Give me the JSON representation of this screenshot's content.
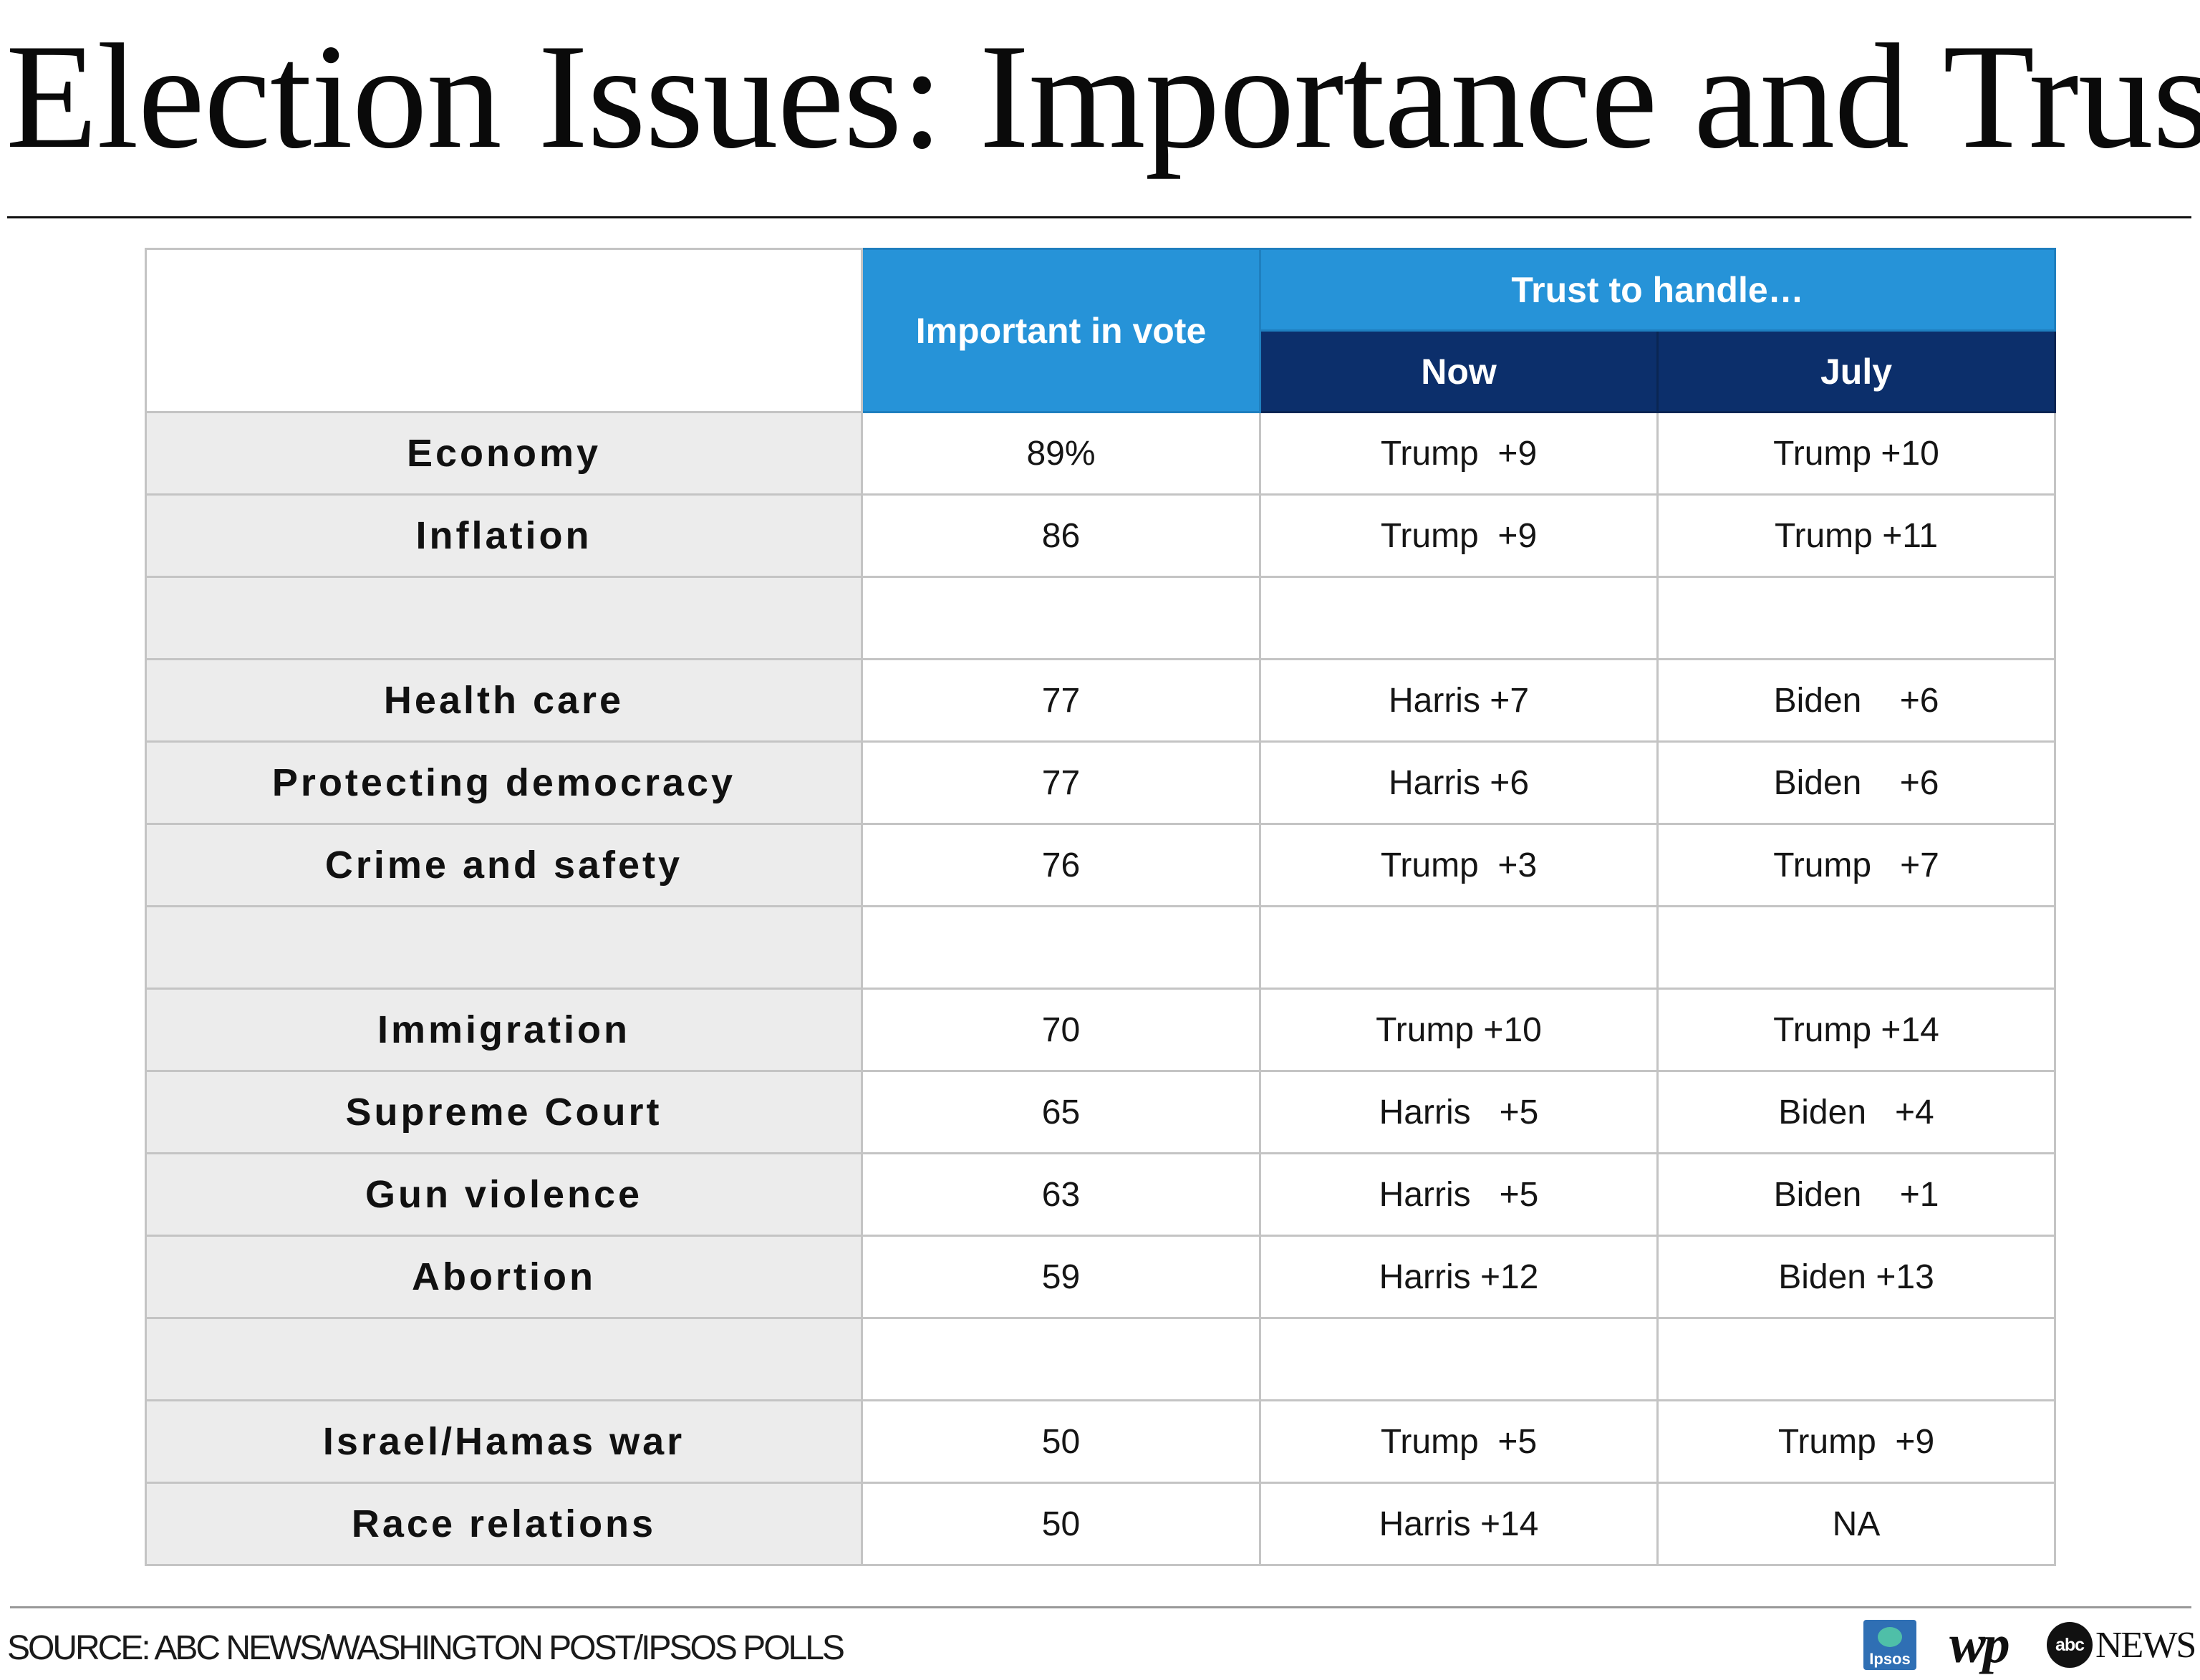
{
  "title": "Election Issues: Importance and Trust",
  "table": {
    "col_important": "Important in vote",
    "col_trust_group": "Trust to handle…",
    "col_now": "Now",
    "col_july": "July",
    "rows": [
      {
        "issue": "Economy",
        "important": "89%",
        "now": "Trump  +9",
        "july": "Trump +10"
      },
      {
        "issue": "Inflation",
        "important": "86",
        "now": "Trump  +9",
        "july": "Trump +11"
      },
      {
        "spacer": true
      },
      {
        "issue": "Health care",
        "important": "77",
        "now": "Harris +7",
        "july": "Biden    +6"
      },
      {
        "issue": "Protecting democracy",
        "important": "77",
        "now": "Harris +6",
        "july": "Biden    +6"
      },
      {
        "issue": "Crime and safety",
        "important": "76",
        "now": "Trump  +3",
        "july": "Trump   +7"
      },
      {
        "spacer": true
      },
      {
        "issue": "Immigration",
        "important": "70",
        "now": "Trump +10",
        "july": "Trump +14"
      },
      {
        "issue": "Supreme Court",
        "important": "65",
        "now": "Harris   +5",
        "july": "Biden   +4"
      },
      {
        "issue": "Gun violence",
        "important": "63",
        "now": "Harris   +5",
        "july": "Biden    +1"
      },
      {
        "issue": "Abortion",
        "important": "59",
        "now": "Harris +12",
        "july": "Biden +13"
      },
      {
        "spacer": true
      },
      {
        "issue": "Israel/Hamas war",
        "important": "50",
        "now": "Trump  +5",
        "july": "Trump  +9"
      },
      {
        "issue": "Race relations",
        "important": "50",
        "now": "Harris +14",
        "july": "NA"
      }
    ]
  },
  "source": "SOURCE: ABC NEWS/WASHINGTON POST/IPSOS POLLS",
  "logos": {
    "ipsos": "Ipsos",
    "wp": "wp",
    "abc": "abc",
    "abc_news": "NEWS"
  },
  "colors": {
    "header_light_blue": "#2693d8",
    "header_dark_navy": "#0c2f6b",
    "issue_column_gray": "#ececec"
  }
}
